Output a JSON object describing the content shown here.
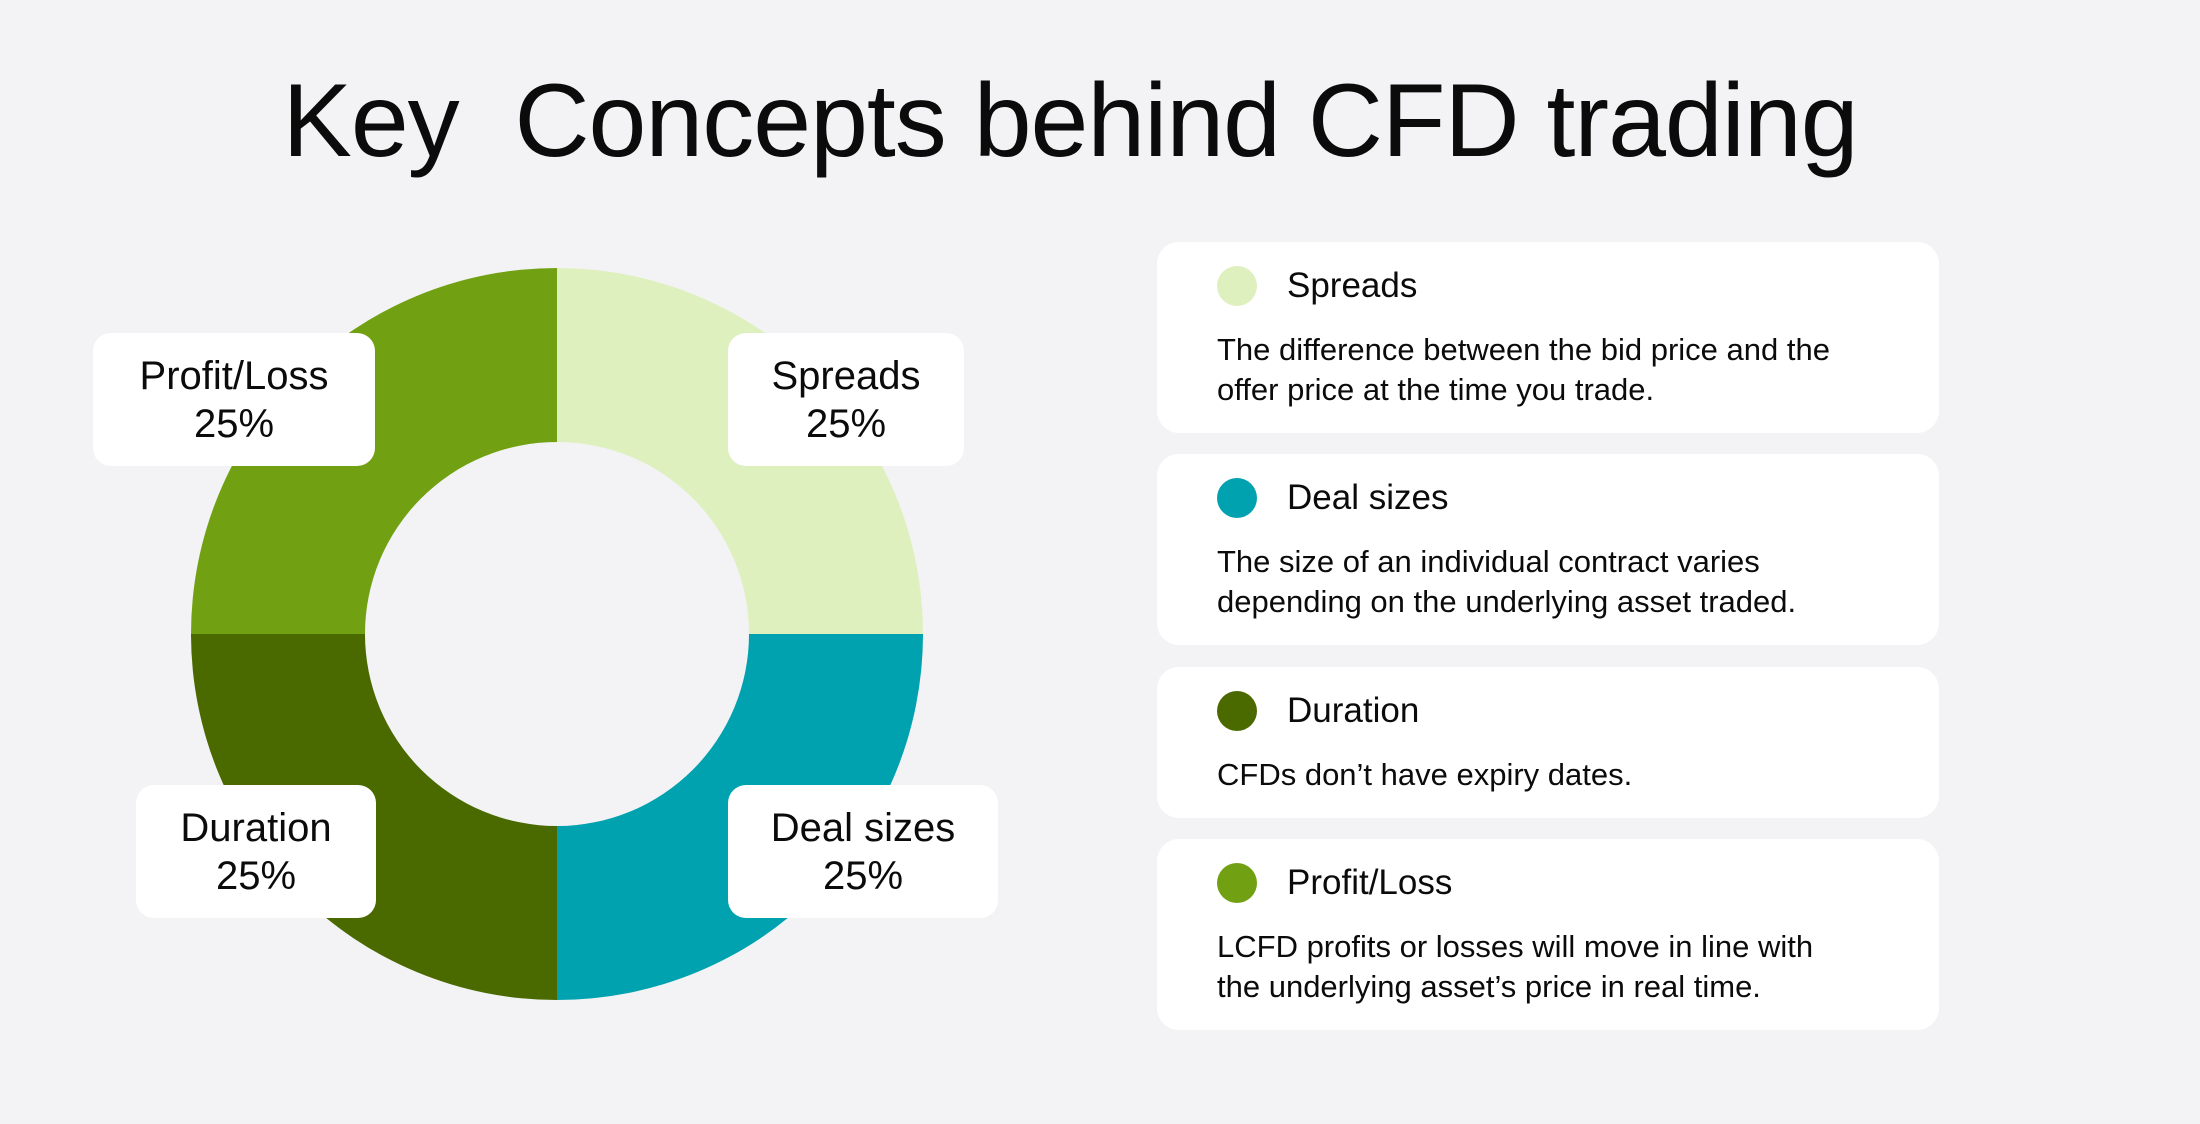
{
  "title": "Key  Concepts behind CFD trading",
  "chart_data": {
    "type": "pie",
    "donut": true,
    "slices": [
      {
        "name": "Spreads",
        "value": 25,
        "label": "25%",
        "color": "#dff0bf"
      },
      {
        "name": "Deal sizes",
        "value": 25,
        "label": "25%",
        "color": "#00a2af"
      },
      {
        "name": "Duration",
        "value": 25,
        "label": "25%",
        "color": "#4a6a00"
      },
      {
        "name": "Profit/Loss",
        "value": 25,
        "label": "25%",
        "color": "#71a112"
      }
    ]
  },
  "legend": [
    {
      "name": "Spreads",
      "color": "#dff0bf",
      "desc1": "The difference between the bid price and the",
      "desc2": "offer price at the time you trade."
    },
    {
      "name": "Deal sizes",
      "color": "#00a2af",
      "desc1": "The size of an individual contract varies",
      "desc2": "depending on the underlying asset traded."
    },
    {
      "name": "Duration",
      "color": "#4a6a00",
      "desc1": "CFDs don’t have expiry dates.",
      "desc2": ""
    },
    {
      "name": "Profit/Loss",
      "color": "#71a112",
      "desc1": "LCFD profits or losses will move in line with",
      "desc2": "the underlying asset’s price in real time."
    }
  ]
}
